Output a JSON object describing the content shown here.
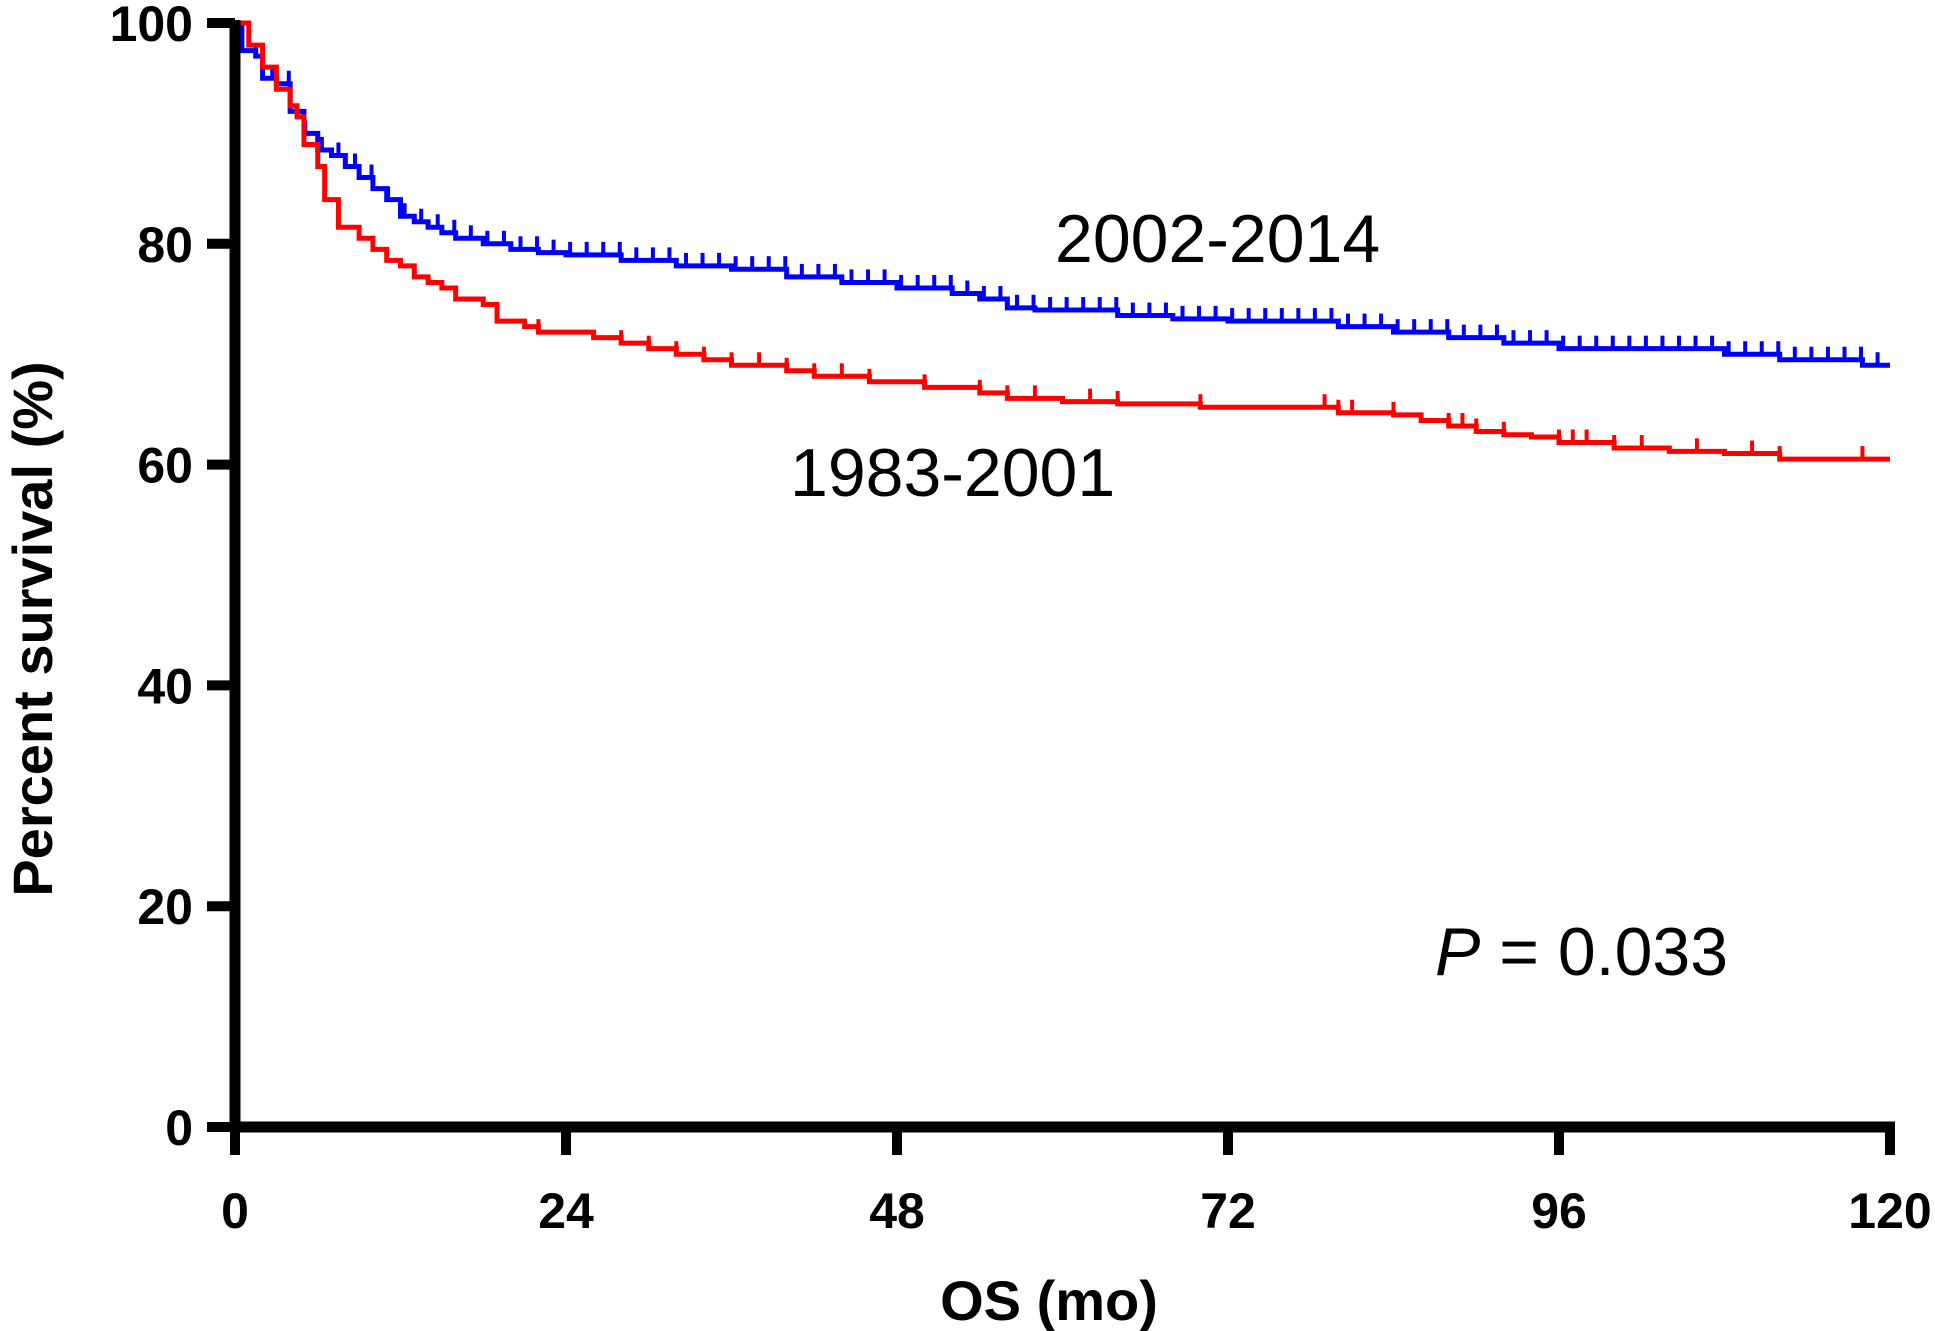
{
  "chart_data": {
    "type": "line",
    "subtype": "kaplan-meier-survival",
    "title": "",
    "xlabel": "OS (mo)",
    "ylabel": "Percent survival (%)",
    "xlim": [
      0,
      120
    ],
    "ylim": [
      0,
      100
    ],
    "xticks": [
      0,
      24,
      48,
      72,
      96,
      120
    ],
    "yticks": [
      0,
      20,
      40,
      60,
      80,
      100
    ],
    "grid": false,
    "annotation": {
      "prefix": "P",
      "text": " = 0.033"
    },
    "series": [
      {
        "label": "2002-2014",
        "color": "#0000ff",
        "points": [
          [
            0,
            100
          ],
          [
            0.5,
            97.5
          ],
          [
            1.5,
            97
          ],
          [
            2,
            95
          ],
          [
            3,
            94.5
          ],
          [
            4,
            92
          ],
          [
            5,
            90
          ],
          [
            6,
            88.5
          ],
          [
            7,
            88
          ],
          [
            8,
            87
          ],
          [
            9,
            86
          ],
          [
            10,
            85
          ],
          [
            11,
            84
          ],
          [
            12,
            82.5
          ],
          [
            13,
            82
          ],
          [
            14,
            81.5
          ],
          [
            15,
            81
          ],
          [
            16,
            80.5
          ],
          [
            18,
            80
          ],
          [
            20,
            79.5
          ],
          [
            22,
            79.2
          ],
          [
            24,
            79
          ],
          [
            28,
            78.5
          ],
          [
            32,
            78
          ],
          [
            36,
            77.7
          ],
          [
            40,
            77
          ],
          [
            44,
            76.5
          ],
          [
            48,
            76
          ],
          [
            52,
            75.5
          ],
          [
            54,
            75
          ],
          [
            56,
            74.2
          ],
          [
            58,
            74
          ],
          [
            60,
            74
          ],
          [
            64,
            73.5
          ],
          [
            68,
            73.2
          ],
          [
            72,
            73
          ],
          [
            76,
            73
          ],
          [
            80,
            72.5
          ],
          [
            84,
            72
          ],
          [
            88,
            71.5
          ],
          [
            92,
            71
          ],
          [
            96,
            70.5
          ],
          [
            100,
            70.5
          ],
          [
            104,
            70.5
          ],
          [
            108,
            70
          ],
          [
            112,
            69.5
          ],
          [
            116,
            69.5
          ],
          [
            118,
            69
          ],
          [
            120,
            69
          ]
        ],
        "censor_marks": "dense"
      },
      {
        "label": "1983-2001",
        "color": "#ff0000",
        "points": [
          [
            0,
            100
          ],
          [
            1,
            98
          ],
          [
            2,
            96
          ],
          [
            3,
            94
          ],
          [
            4,
            92.5
          ],
          [
            4.5,
            91.5
          ],
          [
            5,
            89
          ],
          [
            6,
            87
          ],
          [
            6.5,
            84
          ],
          [
            7.5,
            81.5
          ],
          [
            9,
            80.5
          ],
          [
            10,
            79.5
          ],
          [
            11,
            78.5
          ],
          [
            12,
            78
          ],
          [
            13,
            77
          ],
          [
            14,
            76.5
          ],
          [
            15,
            76
          ],
          [
            16,
            75
          ],
          [
            18,
            74.5
          ],
          [
            19,
            73
          ],
          [
            21,
            72.5
          ],
          [
            22,
            72
          ],
          [
            26,
            71.5
          ],
          [
            28,
            71
          ],
          [
            30,
            70.5
          ],
          [
            32,
            70
          ],
          [
            34,
            69.5
          ],
          [
            36,
            69
          ],
          [
            40,
            68.5
          ],
          [
            42,
            68
          ],
          [
            46,
            67.5
          ],
          [
            50,
            67
          ],
          [
            54,
            66.5
          ],
          [
            56,
            66
          ],
          [
            60,
            65.7
          ],
          [
            64,
            65.5
          ],
          [
            68,
            65.5
          ],
          [
            70,
            65.2
          ],
          [
            76,
            65.2
          ],
          [
            80,
            64.7
          ],
          [
            84,
            64.5
          ],
          [
            86,
            64
          ],
          [
            88,
            63.5
          ],
          [
            90,
            63
          ],
          [
            92,
            62.7
          ],
          [
            94,
            62.5
          ],
          [
            96,
            62
          ],
          [
            100,
            61.5
          ],
          [
            104,
            61.2
          ],
          [
            108,
            61
          ],
          [
            112,
            60.5
          ],
          [
            116,
            60.5
          ],
          [
            120,
            60.5
          ]
        ],
        "censor_x": [
          22,
          28,
          30,
          32,
          34,
          36,
          38,
          40,
          42,
          44,
          46,
          50,
          54,
          56,
          58,
          62,
          64,
          70,
          79,
          80,
          81,
          84,
          88,
          89,
          90,
          92,
          96,
          97,
          98,
          100,
          102,
          106,
          110,
          112,
          118
        ]
      }
    ]
  }
}
